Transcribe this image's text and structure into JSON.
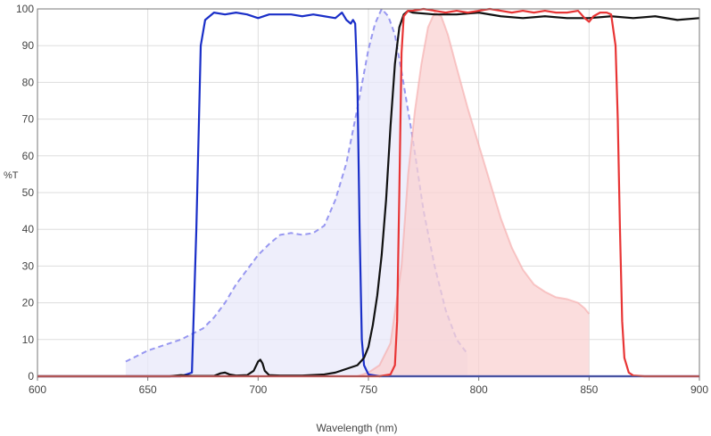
{
  "chart_data": {
    "type": "line",
    "title": "",
    "xlabel": "Wavelength (nm)",
    "ylabel": "%T",
    "xlim": [
      600,
      900
    ],
    "ylim": [
      0,
      100
    ],
    "x_ticks": [
      600,
      650,
      700,
      750,
      800,
      850,
      900
    ],
    "y_ticks": [
      0,
      10,
      20,
      30,
      40,
      50,
      60,
      70,
      80,
      90,
      100
    ],
    "x_tick_labels": [
      "600",
      "650",
      "700",
      "750",
      "800",
      "850",
      "900"
    ],
    "y_tick_labels": [
      "0",
      "10",
      "20",
      "30",
      "40",
      "50",
      "60",
      "70",
      "80",
      "90",
      "100"
    ],
    "grid": true,
    "legend": "none",
    "series": [
      {
        "style": "filled-dashed",
        "color": "#8080ee",
        "fill": "#e8e8fa",
        "x": [
          640,
          645,
          650,
          655,
          660,
          665,
          670,
          675,
          680,
          685,
          690,
          695,
          700,
          705,
          710,
          715,
          720,
          725,
          730,
          735,
          740,
          745,
          750,
          753,
          756,
          759,
          762,
          765,
          770,
          775,
          780,
          785,
          790,
          795
        ],
        "y": [
          4,
          5.5,
          7,
          8,
          9,
          10,
          11.5,
          13,
          16,
          20,
          25,
          29,
          33,
          36,
          38.5,
          39,
          38.5,
          39,
          41,
          48,
          58,
          73,
          89,
          96,
          100,
          98,
          93,
          83,
          65,
          45,
          30,
          18,
          10,
          6
        ]
      },
      {
        "style": "filled",
        "color": "#f5a8a8",
        "fill": "#fad2d2",
        "x": [
          745,
          750,
          755,
          760,
          765,
          768,
          771,
          774,
          777,
          780,
          783,
          786,
          790,
          795,
          800,
          805,
          810,
          815,
          820,
          825,
          830,
          835,
          840,
          845,
          848,
          850
        ],
        "y": [
          0,
          1,
          3,
          9,
          30,
          55,
          72,
          85,
          95,
          99,
          98,
          93,
          84,
          73,
          63,
          53,
          43,
          35,
          29,
          25,
          23,
          21.5,
          21,
          20,
          18.5,
          17
        ]
      },
      {
        "style": "line",
        "color": "#1a2fc8",
        "x": [
          600,
          665,
          670,
          672,
          674,
          676,
          678,
          680,
          685,
          690,
          695,
          700,
          705,
          710,
          715,
          720,
          725,
          730,
          735,
          738,
          740,
          742,
          743,
          744,
          745,
          746,
          747,
          748,
          750,
          755,
          800,
          900
        ],
        "y": [
          0,
          0,
          1,
          40,
          90,
          97,
          98,
          99,
          98.5,
          99,
          98.5,
          97.5,
          98.5,
          98.5,
          98.5,
          98,
          98.5,
          98,
          97.5,
          99,
          97,
          96,
          97,
          96,
          80,
          40,
          10,
          3,
          0.5,
          0,
          0,
          0
        ]
      },
      {
        "style": "line",
        "color": "#111111",
        "x": [
          600,
          660,
          665,
          670,
          680,
          683,
          685,
          687,
          690,
          695,
          698,
          700,
          701,
          702,
          703,
          705,
          710,
          720,
          730,
          735,
          740,
          745,
          748,
          750,
          752,
          754,
          756,
          758,
          760,
          762,
          764,
          766,
          768,
          770,
          780,
          790,
          800,
          810,
          820,
          830,
          840,
          850,
          860,
          870,
          880,
          890,
          900
        ],
        "y": [
          0,
          0,
          0.3,
          0.1,
          0.1,
          0.8,
          1,
          0.5,
          0.2,
          0.3,
          1.5,
          4,
          4.5,
          3.5,
          1.5,
          0.3,
          0.2,
          0.2,
          0.5,
          1,
          2,
          3,
          5,
          8,
          14,
          22,
          33,
          48,
          68,
          85,
          95,
          98.5,
          99.5,
          99,
          98.5,
          98.5,
          99,
          98,
          97.5,
          98,
          97.5,
          97.5,
          98,
          97.5,
          98,
          97,
          97.5
        ]
      },
      {
        "style": "line",
        "color": "#e83535",
        "x": [
          600,
          755,
          760,
          762,
          763,
          764,
          765,
          766,
          768,
          770,
          775,
          780,
          785,
          790,
          795,
          800,
          805,
          810,
          815,
          820,
          825,
          830,
          835,
          840,
          845,
          848,
          850,
          852,
          855,
          858,
          860,
          862,
          863,
          864,
          865,
          866,
          868,
          870,
          875,
          900
        ],
        "y": [
          0,
          0,
          0.5,
          3,
          15,
          50,
          88,
          98,
          99.5,
          99.5,
          100,
          99.5,
          99,
          99.5,
          99,
          99.5,
          100,
          99.5,
          99,
          99.5,
          99,
          99.5,
          99,
          99,
          99.5,
          97.5,
          96.5,
          98,
          99,
          99,
          98.5,
          90,
          70,
          40,
          15,
          5,
          1,
          0.2,
          0,
          0
        ]
      }
    ]
  }
}
